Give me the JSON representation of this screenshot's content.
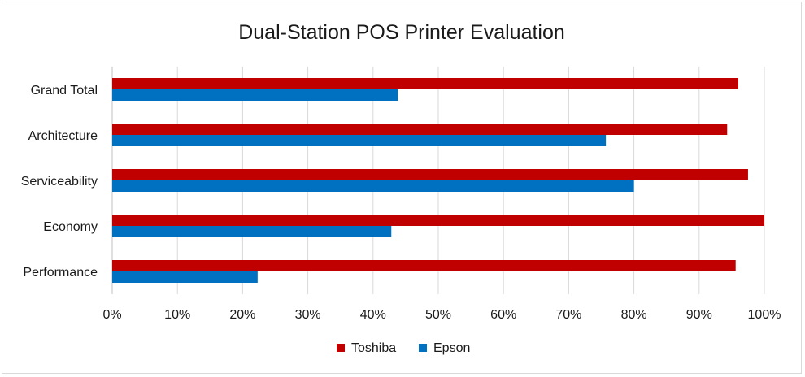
{
  "chart_data": {
    "type": "bar",
    "orientation": "horizontal",
    "title": "Dual-Station POS Printer Evaluation",
    "categories": [
      "Grand Total",
      "Architecture",
      "Serviceability",
      "Economy",
      "Performance"
    ],
    "series": [
      {
        "name": "Toshiba",
        "color": "#c00000",
        "values": [
          96,
          94.3,
          97.5,
          100,
          95.6
        ]
      },
      {
        "name": "Epson",
        "color": "#0070c0",
        "values": [
          43.8,
          75.7,
          80,
          42.8,
          22.3
        ]
      }
    ],
    "xlim": [
      0,
      100
    ],
    "x_ticks": [
      "0%",
      "10%",
      "20%",
      "30%",
      "40%",
      "50%",
      "60%",
      "70%",
      "80%",
      "90%",
      "100%"
    ],
    "grid": true,
    "legend_position": "bottom"
  }
}
